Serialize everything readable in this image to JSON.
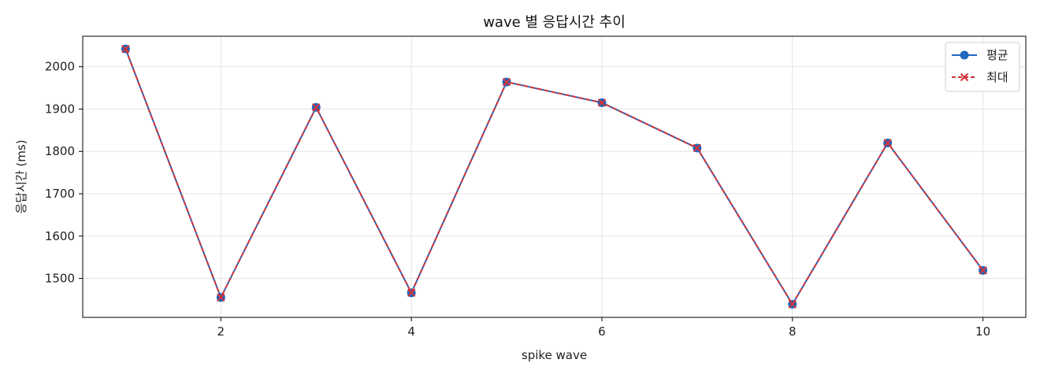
{
  "chart_data": {
    "type": "line",
    "title": "wave 별 응답시간 추이",
    "xlabel": "spike wave",
    "ylabel": "응답시간 (ms)",
    "x": [
      1,
      2,
      3,
      4,
      5,
      6,
      7,
      8,
      9,
      10
    ],
    "xlim": [
      0.55,
      10.45
    ],
    "ylim": [
      1408,
      2072
    ],
    "x_ticks": [
      2,
      4,
      6,
      8,
      10
    ],
    "y_ticks": [
      1500,
      1600,
      1700,
      1800,
      1900,
      2000
    ],
    "grid": true,
    "legend_position": "top-right",
    "series": [
      {
        "name": "평균",
        "values": [
          2042,
          1455,
          1904,
          1466,
          1964,
          1915,
          1808,
          1439,
          1820,
          1519
        ],
        "color": "#1f66bd",
        "marker": "circle",
        "line_style": "solid"
      },
      {
        "name": "최대",
        "values": [
          2042,
          1455,
          1904,
          1466,
          1964,
          1915,
          1808,
          1439,
          1820,
          1519
        ],
        "color": "#d1343b",
        "marker": "x",
        "line_style": "dashed"
      }
    ]
  }
}
